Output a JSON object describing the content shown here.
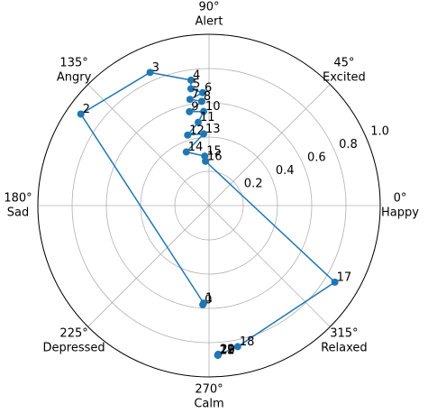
{
  "chart_data": {
    "type": "polar",
    "rlim": [
      0,
      1
    ],
    "rticks": [
      0.2,
      0.4,
      0.6,
      0.8,
      1.0
    ],
    "rtick_labels": [
      "0.2",
      "0.4",
      "0.6",
      "0.8",
      "1.0"
    ],
    "thetaticks": [
      {
        "value": 0,
        "label": "0°",
        "name": "Happy"
      },
      {
        "value": 45,
        "label": "45°",
        "name": "Excited"
      },
      {
        "value": 90,
        "label": "90°",
        "name": "Alert"
      },
      {
        "value": 135,
        "label": "135°",
        "name": "Angry"
      },
      {
        "value": 180,
        "label": "180°",
        "name": "Sad"
      },
      {
        "value": 225,
        "label": "225°",
        "name": "Depressed"
      },
      {
        "value": 270,
        "label": "270°",
        "name": "Calm"
      },
      {
        "value": 315,
        "label": "315°",
        "name": "Relaxed"
      }
    ],
    "grid": true,
    "series": [
      {
        "color": "#1f77b4",
        "theta": [
          266.4,
          266.8,
          144.5,
          113.9,
          98.2,
          98.8,
          93.2,
          100.2,
          94.0,
          101.8,
          93.3,
          97.4,
          106.9,
          94.3,
          113.0,
          95.0,
          94.6,
          328.7,
          281.5,
          273.4,
          273.6,
          273.3,
          273.5,
          273.4
        ],
        "r": [
          0.58,
          0.57,
          0.92,
          0.85,
          0.74,
          0.69,
          0.66,
          0.63,
          0.61,
          0.56,
          0.55,
          0.49,
          0.43,
          0.42,
          0.34,
          0.29,
          0.26,
          0.86,
          0.84,
          0.875,
          0.87,
          0.875,
          0.87,
          0.875
        ],
        "labels": [
          "0",
          "1",
          "2",
          "3",
          "4",
          "5",
          "6",
          "7",
          "8",
          "9",
          "10",
          "11",
          "12",
          "13",
          "14",
          "15",
          "16",
          "17",
          "18",
          "19",
          "20",
          "21",
          "22",
          "23"
        ]
      }
    ]
  }
}
